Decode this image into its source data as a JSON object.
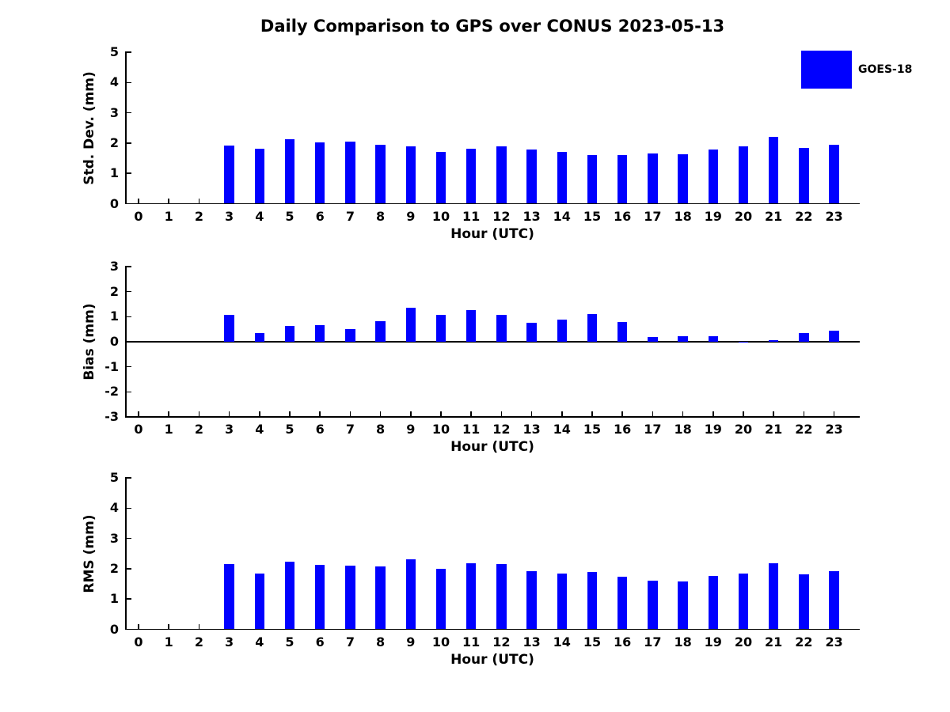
{
  "figure_title": "Daily Comparison to GPS over CONUS 2023-05-13",
  "legend": {
    "label": "GOES-18",
    "color": "#0000ff",
    "position": "upper-right-outside"
  },
  "colors": {
    "bar": "#0000ff",
    "axis": "#000000",
    "text": "#000000",
    "background": "#ffffff"
  },
  "chart_data": [
    {
      "id": "std-dev",
      "type": "bar",
      "series_name": "GOES-18",
      "ylabel": "Std. Dev. (mm)",
      "xlabel": "Hour (UTC)",
      "ylim": [
        0,
        5
      ],
      "yticks": [
        0,
        1,
        2,
        3,
        4,
        5
      ],
      "grid": false,
      "categories": [
        "0",
        "1",
        "2",
        "3",
        "4",
        "5",
        "6",
        "7",
        "8",
        "9",
        "10",
        "11",
        "12",
        "13",
        "14",
        "15",
        "16",
        "17",
        "18",
        "19",
        "20",
        "21",
        "22",
        "23"
      ],
      "values": [
        null,
        null,
        null,
        1.93,
        1.81,
        2.12,
        2.02,
        2.05,
        1.95,
        1.89,
        1.71,
        1.81,
        1.89,
        1.79,
        1.7,
        1.6,
        1.6,
        1.65,
        1.64,
        1.8,
        1.88,
        2.2,
        1.85,
        1.95
      ]
    },
    {
      "id": "bias",
      "type": "bar",
      "series_name": "GOES-18",
      "ylabel": "Bias (mm)",
      "xlabel": "Hour (UTC)",
      "ylim": [
        -3,
        3
      ],
      "yticks": [
        -3,
        -2,
        -1,
        0,
        1,
        2,
        3
      ],
      "zero_line": true,
      "grid": false,
      "categories": [
        "0",
        "1",
        "2",
        "3",
        "4",
        "5",
        "6",
        "7",
        "8",
        "9",
        "10",
        "11",
        "12",
        "13",
        "14",
        "15",
        "16",
        "17",
        "18",
        "19",
        "20",
        "21",
        "22",
        "23"
      ],
      "values": [
        null,
        null,
        null,
        1.07,
        0.36,
        0.64,
        0.67,
        0.51,
        0.81,
        1.35,
        1.07,
        1.27,
        1.07,
        0.75,
        0.88,
        1.09,
        0.78,
        0.18,
        0.23,
        0.23,
        -0.02,
        0.05,
        0.36,
        0.44
      ]
    },
    {
      "id": "rms",
      "type": "bar",
      "series_name": "GOES-18",
      "ylabel": "RMS (mm)",
      "xlabel": "Hour (UTC)",
      "ylim": [
        0,
        5
      ],
      "yticks": [
        0,
        1,
        2,
        3,
        4,
        5
      ],
      "grid": false,
      "categories": [
        "0",
        "1",
        "2",
        "3",
        "4",
        "5",
        "6",
        "7",
        "8",
        "9",
        "10",
        "11",
        "12",
        "13",
        "14",
        "15",
        "16",
        "17",
        "18",
        "19",
        "20",
        "21",
        "22",
        "23"
      ],
      "values": [
        null,
        null,
        null,
        2.16,
        1.84,
        2.22,
        2.13,
        2.1,
        2.08,
        2.3,
        1.99,
        2.19,
        2.16,
        1.91,
        1.85,
        1.89,
        1.73,
        1.6,
        1.58,
        1.76,
        1.84,
        2.17,
        1.82,
        1.92
      ]
    }
  ]
}
